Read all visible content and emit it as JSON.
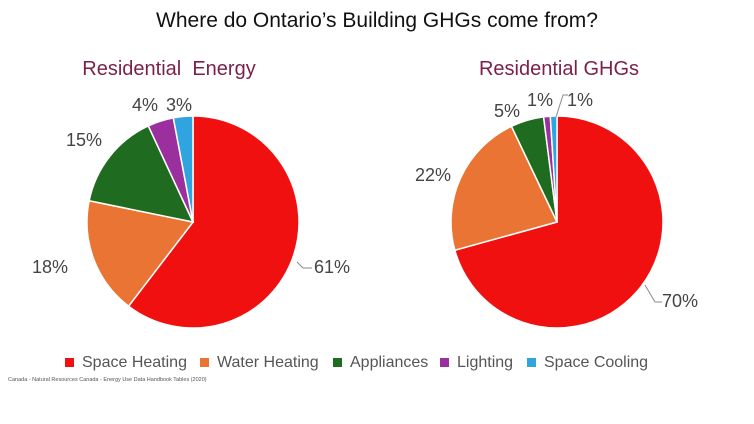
{
  "title": "Where do Ontario’s Building GHGs come from?",
  "source": "Canada - Natural Resources Canada - Energy Use Data Handbook Tables (2020)",
  "colors": {
    "Space Heating": "#f01010",
    "Water Heating": "#ea7433",
    "Appliances": "#1f6b1f",
    "Lighting": "#9b2f9e",
    "Space Cooling": "#2fa4df"
  },
  "legend": [
    "Space Heating",
    "Water Heating",
    "Appliances",
    "Lighting",
    "Space Cooling"
  ],
  "chart_data": [
    {
      "type": "pie",
      "title": "Residential  Energy",
      "categories": [
        "Space Heating",
        "Water Heating",
        "Appliances",
        "Lighting",
        "Space Cooling"
      ],
      "values": [
        61,
        18,
        15,
        4,
        3
      ],
      "labels": [
        "61%",
        "18%",
        "15%",
        "4%",
        "3%"
      ],
      "start": "top, clockwise"
    },
    {
      "type": "pie",
      "title": "Residential GHGs",
      "categories": [
        "Space Heating",
        "Water Heating",
        "Appliances",
        "Lighting",
        "Space Cooling"
      ],
      "values": [
        70,
        22,
        5,
        1,
        1
      ],
      "labels": [
        "70%",
        "22%",
        "5%",
        "1%",
        "1%"
      ],
      "start": "top, clockwise"
    }
  ]
}
